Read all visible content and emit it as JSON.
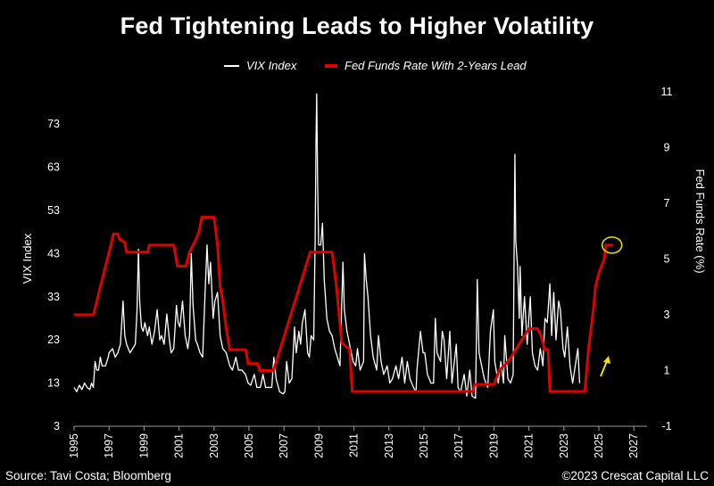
{
  "title": "Fed Tightening Leads to Higher Volatility",
  "legend": [
    {
      "label": "VIX Index",
      "color": "#ffffff"
    },
    {
      "label": "Fed Funds Rate With 2-Years Lead",
      "color": "#e00000"
    }
  ],
  "footer": {
    "source": "Source: Tavi Costa; Bloomberg",
    "copyright": "©2023 Crescat Capital LLC"
  },
  "chart_data": {
    "type": "line",
    "title": "Fed Tightening Leads to Higher Volatility",
    "xlabel": "",
    "ylabel_left": "VIX Index",
    "ylabel_right": "Fed Funds Rate (%)",
    "xlim": [
      1995,
      2028
    ],
    "ylim_left": [
      3,
      80
    ],
    "ylim_right": [
      -1,
      11
    ],
    "x_ticks": [
      "1995",
      "1997",
      "1999",
      "2001",
      "2003",
      "2005",
      "2007",
      "2009",
      "2011",
      "2013",
      "2015",
      "2017",
      "2019",
      "2021",
      "2023",
      "2025",
      "2027"
    ],
    "y_left_ticks": [
      "3",
      "13",
      "23",
      "33",
      "43",
      "53",
      "63",
      "73"
    ],
    "y_right_ticks": [
      "-1",
      "1",
      "3",
      "5",
      "7",
      "9",
      "11"
    ],
    "grid": false,
    "legend_position": "top-center",
    "colors": {
      "vix": "#ffffff",
      "fed": "#e00000",
      "highlight": "#f0e000"
    },
    "annotations": [
      "yellow circle around latest Fed Funds value (~5.5% at 2025.6)",
      "yellow arrow pointing up near 2025"
    ],
    "series": [
      {
        "name": "VIX Index",
        "axis": "left",
        "points": [
          [
            1995.0,
            12
          ],
          [
            1995.15,
            11
          ],
          [
            1995.3,
            12.5
          ],
          [
            1995.45,
            11.5
          ],
          [
            1995.6,
            13
          ],
          [
            1995.75,
            12
          ],
          [
            1995.9,
            11.5
          ],
          [
            1996.0,
            13
          ],
          [
            1996.1,
            12
          ],
          [
            1996.2,
            18
          ],
          [
            1996.3,
            16
          ],
          [
            1996.4,
            16
          ],
          [
            1996.5,
            19
          ],
          [
            1996.6,
            17
          ],
          [
            1996.8,
            17
          ],
          [
            1996.95,
            19
          ],
          [
            1997.0,
            20
          ],
          [
            1997.2,
            21
          ],
          [
            1997.35,
            19
          ],
          [
            1997.5,
            20
          ],
          [
            1997.65,
            22
          ],
          [
            1997.8,
            32
          ],
          [
            1997.9,
            24
          ],
          [
            1998.0,
            22
          ],
          [
            1998.2,
            20
          ],
          [
            1998.35,
            21
          ],
          [
            1998.5,
            22
          ],
          [
            1998.6,
            30
          ],
          [
            1998.68,
            44
          ],
          [
            1998.75,
            32
          ],
          [
            1998.85,
            26
          ],
          [
            1998.95,
            25
          ],
          [
            1999.05,
            27
          ],
          [
            1999.2,
            24
          ],
          [
            1999.3,
            26
          ],
          [
            1999.45,
            22
          ],
          [
            1999.6,
            25
          ],
          [
            1999.75,
            30
          ],
          [
            1999.9,
            23
          ],
          [
            2000.0,
            24
          ],
          [
            2000.15,
            22
          ],
          [
            2000.3,
            29
          ],
          [
            2000.45,
            23
          ],
          [
            2000.55,
            20
          ],
          [
            2000.7,
            21
          ],
          [
            2000.85,
            31
          ],
          [
            2000.95,
            27
          ],
          [
            2001.05,
            26
          ],
          [
            2001.2,
            32
          ],
          [
            2001.35,
            24
          ],
          [
            2001.5,
            21
          ],
          [
            2001.6,
            24
          ],
          [
            2001.7,
            43
          ],
          [
            2001.8,
            31
          ],
          [
            2001.95,
            23
          ],
          [
            2002.05,
            22
          ],
          [
            2002.2,
            20
          ],
          [
            2002.35,
            19
          ],
          [
            2002.5,
            35
          ],
          [
            2002.6,
            45
          ],
          [
            2002.7,
            36
          ],
          [
            2002.8,
            41
          ],
          [
            2002.95,
            28
          ],
          [
            2003.05,
            32
          ],
          [
            2003.2,
            34
          ],
          [
            2003.35,
            24
          ],
          [
            2003.5,
            21
          ],
          [
            2003.7,
            20
          ],
          [
            2003.9,
            17
          ],
          [
            2004.05,
            16
          ],
          [
            2004.25,
            19
          ],
          [
            2004.4,
            16
          ],
          [
            2004.6,
            16
          ],
          [
            2004.8,
            15
          ],
          [
            2004.95,
            13
          ],
          [
            2005.1,
            12.5
          ],
          [
            2005.3,
            15
          ],
          [
            2005.45,
            12
          ],
          [
            2005.65,
            12
          ],
          [
            2005.8,
            15
          ],
          [
            2005.95,
            12
          ],
          [
            2006.1,
            12
          ],
          [
            2006.3,
            12
          ],
          [
            2006.42,
            19
          ],
          [
            2006.55,
            14
          ],
          [
            2006.75,
            11
          ],
          [
            2006.95,
            10.5
          ],
          [
            2007.05,
            11
          ],
          [
            2007.15,
            18
          ],
          [
            2007.3,
            13
          ],
          [
            2007.45,
            14
          ],
          [
            2007.6,
            26
          ],
          [
            2007.7,
            20
          ],
          [
            2007.85,
            25
          ],
          [
            2007.95,
            22
          ],
          [
            2008.05,
            27
          ],
          [
            2008.2,
            30
          ],
          [
            2008.35,
            20
          ],
          [
            2008.45,
            19
          ],
          [
            2008.55,
            24
          ],
          [
            2008.7,
            23
          ],
          [
            2008.78,
            46
          ],
          [
            2008.83,
            69
          ],
          [
            2008.87,
            80
          ],
          [
            2008.92,
            60
          ],
          [
            2008.98,
            45
          ],
          [
            2009.1,
            45
          ],
          [
            2009.2,
            50
          ],
          [
            2009.3,
            37
          ],
          [
            2009.45,
            28
          ],
          [
            2009.6,
            25
          ],
          [
            2009.75,
            24
          ],
          [
            2009.9,
            21
          ],
          [
            2010.05,
            19
          ],
          [
            2010.2,
            17
          ],
          [
            2010.37,
            41
          ],
          [
            2010.45,
            30
          ],
          [
            2010.6,
            25
          ],
          [
            2010.8,
            21
          ],
          [
            2010.95,
            18
          ],
          [
            2011.1,
            17
          ],
          [
            2011.2,
            21
          ],
          [
            2011.35,
            16
          ],
          [
            2011.55,
            18
          ],
          [
            2011.6,
            43
          ],
          [
            2011.7,
            37
          ],
          [
            2011.8,
            33
          ],
          [
            2011.95,
            24
          ],
          [
            2012.1,
            19
          ],
          [
            2012.3,
            16
          ],
          [
            2012.4,
            24
          ],
          [
            2012.55,
            18
          ],
          [
            2012.7,
            15
          ],
          [
            2012.9,
            17
          ],
          [
            2013.05,
            13
          ],
          [
            2013.2,
            14
          ],
          [
            2013.4,
            17
          ],
          [
            2013.55,
            14
          ],
          [
            2013.75,
            19
          ],
          [
            2013.9,
            13
          ],
          [
            2014.05,
            18
          ],
          [
            2014.2,
            14
          ],
          [
            2014.4,
            12
          ],
          [
            2014.55,
            11
          ],
          [
            2014.6,
            16
          ],
          [
            2014.8,
            25
          ],
          [
            2014.95,
            20
          ],
          [
            2015.05,
            20
          ],
          [
            2015.2,
            15
          ],
          [
            2015.4,
            13
          ],
          [
            2015.55,
            13
          ],
          [
            2015.65,
            28
          ],
          [
            2015.75,
            20
          ],
          [
            2015.95,
            18
          ],
          [
            2016.05,
            25
          ],
          [
            2016.15,
            23
          ],
          [
            2016.3,
            14
          ],
          [
            2016.48,
            25
          ],
          [
            2016.6,
            13
          ],
          [
            2016.85,
            22
          ],
          [
            2016.95,
            12
          ],
          [
            2017.1,
            11
          ],
          [
            2017.3,
            15
          ],
          [
            2017.45,
            10
          ],
          [
            2017.62,
            16
          ],
          [
            2017.75,
            10
          ],
          [
            2017.95,
            9.5
          ],
          [
            2018.05,
            37
          ],
          [
            2018.15,
            20
          ],
          [
            2018.3,
            17
          ],
          [
            2018.45,
            14
          ],
          [
            2018.65,
            12
          ],
          [
            2018.8,
            25
          ],
          [
            2018.97,
            30
          ],
          [
            2019.05,
            18
          ],
          [
            2019.25,
            13
          ],
          [
            2019.4,
            18
          ],
          [
            2019.55,
            13
          ],
          [
            2019.62,
            24
          ],
          [
            2019.8,
            14
          ],
          [
            2019.95,
            13
          ],
          [
            2020.1,
            15
          ],
          [
            2020.2,
            66
          ],
          [
            2020.25,
            46
          ],
          [
            2020.35,
            40
          ],
          [
            2020.45,
            28
          ],
          [
            2020.5,
            40
          ],
          [
            2020.6,
            24
          ],
          [
            2020.75,
            33
          ],
          [
            2020.9,
            22
          ],
          [
            2021.08,
            33
          ],
          [
            2021.2,
            20
          ],
          [
            2021.35,
            17
          ],
          [
            2021.5,
            16
          ],
          [
            2021.65,
            21
          ],
          [
            2021.8,
            17
          ],
          [
            2021.92,
            28
          ],
          [
            2022.05,
            27
          ],
          [
            2022.2,
            36
          ],
          [
            2022.3,
            24
          ],
          [
            2022.42,
            34
          ],
          [
            2022.55,
            23
          ],
          [
            2022.7,
            32
          ],
          [
            2022.8,
            30
          ],
          [
            2022.95,
            21
          ],
          [
            2023.05,
            19
          ],
          [
            2023.2,
            26
          ],
          [
            2023.35,
            17
          ],
          [
            2023.5,
            13
          ],
          [
            2023.65,
            17
          ],
          [
            2023.8,
            21
          ],
          [
            2023.9,
            13
          ]
        ]
      },
      {
        "name": "Fed Funds Rate With 2-Years Lead",
        "axis": "right",
        "points": [
          [
            1995.0,
            3.0
          ],
          [
            1996.1,
            3.0
          ],
          [
            1996.3,
            3.5
          ],
          [
            1996.5,
            4.0
          ],
          [
            1996.7,
            4.5
          ],
          [
            1996.9,
            5.0
          ],
          [
            1997.1,
            5.5
          ],
          [
            1997.25,
            5.9
          ],
          [
            1997.5,
            5.9
          ],
          [
            1997.6,
            5.7
          ],
          [
            1997.9,
            5.6
          ],
          [
            1998.0,
            5.25
          ],
          [
            1999.2,
            5.25
          ],
          [
            1999.3,
            5.5
          ],
          [
            2000.7,
            5.5
          ],
          [
            2000.9,
            4.75
          ],
          [
            2001.4,
            4.75
          ],
          [
            2001.6,
            5.25
          ],
          [
            2001.8,
            5.5
          ],
          [
            2002.0,
            5.75
          ],
          [
            2002.15,
            6.0
          ],
          [
            2002.3,
            6.5
          ],
          [
            2003.0,
            6.5
          ],
          [
            2003.2,
            5.5
          ],
          [
            2003.35,
            4.0
          ],
          [
            2003.5,
            3.5
          ],
          [
            2003.7,
            2.5
          ],
          [
            2003.9,
            1.75
          ],
          [
            2004.8,
            1.75
          ],
          [
            2004.95,
            1.25
          ],
          [
            2005.5,
            1.25
          ],
          [
            2005.6,
            1.0
          ],
          [
            2006.4,
            1.0
          ],
          [
            2008.5,
            5.25
          ],
          [
            2009.75,
            5.25
          ],
          [
            2010.0,
            4.0
          ],
          [
            2010.3,
            2.0
          ],
          [
            2010.75,
            1.75
          ],
          [
            2010.9,
            0.25
          ],
          [
            2017.8,
            0.25
          ],
          [
            2017.9,
            0.5
          ],
          [
            2019.0,
            0.5
          ],
          [
            2019.3,
            1.0
          ],
          [
            2019.7,
            1.25
          ],
          [
            2020.0,
            1.5
          ],
          [
            2020.25,
            1.75
          ],
          [
            2020.5,
            2.0
          ],
          [
            2020.75,
            2.25
          ],
          [
            2021.0,
            2.5
          ],
          [
            2021.5,
            2.5
          ],
          [
            2021.7,
            2.25
          ],
          [
            2021.9,
            1.75
          ],
          [
            2022.1,
            1.75
          ],
          [
            2022.2,
            0.25
          ],
          [
            2024.2,
            0.25
          ],
          [
            2024.3,
            1.0
          ],
          [
            2024.4,
            1.75
          ],
          [
            2024.55,
            2.5
          ],
          [
            2024.7,
            3.25
          ],
          [
            2024.8,
            4.0
          ],
          [
            2025.0,
            4.5
          ],
          [
            2025.3,
            5.0
          ],
          [
            2025.4,
            5.5
          ],
          [
            2025.8,
            5.5
          ]
        ]
      }
    ]
  }
}
